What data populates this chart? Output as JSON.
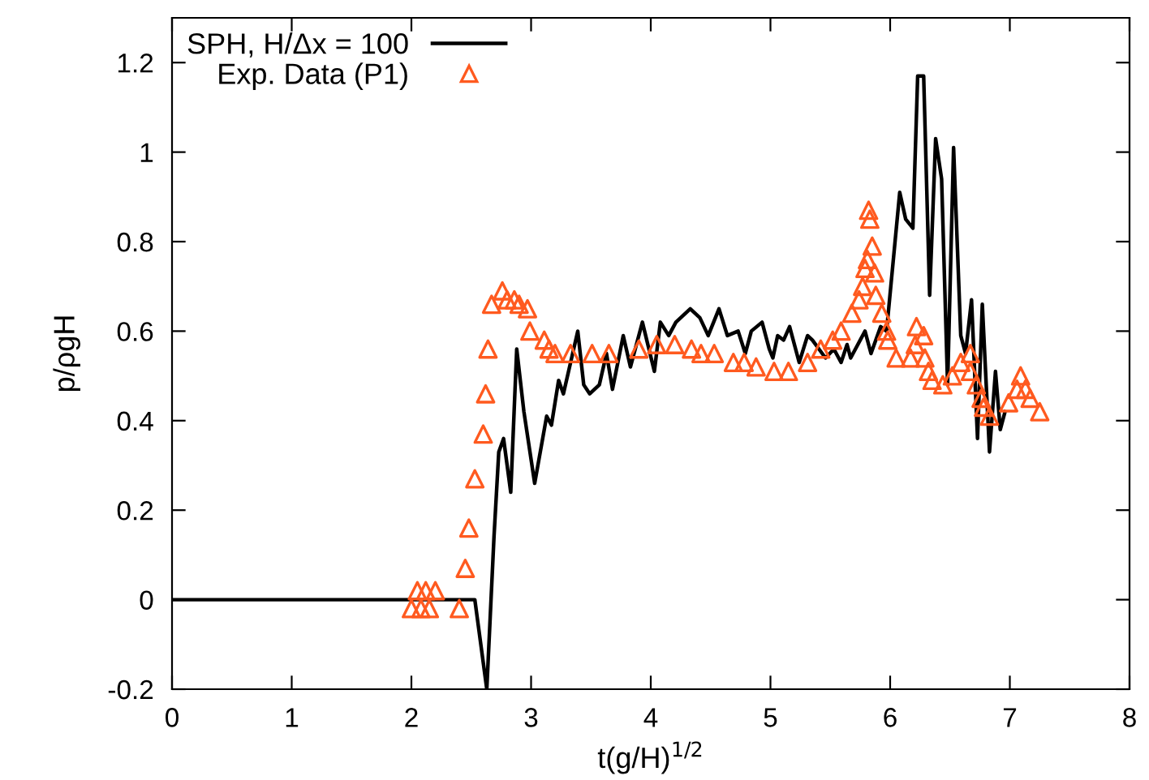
{
  "chart_data": {
    "type": "line",
    "xlabel": "t(g/H)$^{1/2}$",
    "ylabel": "p/ρgH",
    "xlim": [
      0,
      8
    ],
    "xticks": [
      0,
      1,
      2,
      3,
      4,
      5,
      6,
      7,
      8
    ],
    "ylim": [
      -0.2,
      1.3
    ],
    "yticks": [
      -0.2,
      0,
      0.2,
      0.4,
      0.6,
      0.8,
      1,
      1.2
    ],
    "grid": false,
    "legend": "top left",
    "series": [
      {
        "name": "SPH, H/Δx = 100",
        "color": "#000000",
        "marker": "none",
        "line_style": "solid",
        "x": [
          0,
          2.53,
          2.63,
          2.69,
          2.73,
          2.77,
          2.83,
          2.88,
          2.94,
          3.03,
          3.13,
          3.17,
          3.23,
          3.27,
          3.39,
          3.44,
          3.49,
          3.57,
          3.63,
          3.68,
          3.77,
          3.83,
          3.93,
          4.03,
          4.08,
          4.15,
          4.21,
          4.33,
          4.41,
          4.48,
          4.57,
          4.64,
          4.73,
          4.79,
          4.84,
          4.93,
          4.99,
          5.02,
          5.06,
          5.11,
          5.16,
          5.24,
          5.31,
          5.35,
          5.46,
          5.53,
          5.59,
          5.64,
          5.67,
          5.79,
          5.84,
          5.92,
          5.97,
          6.08,
          6.13,
          6.19,
          6.23,
          6.28,
          6.33,
          6.38,
          6.43,
          6.48,
          6.53,
          6.59,
          6.63,
          6.68,
          6.73,
          6.77,
          6.83,
          6.88,
          6.92,
          6.96
        ],
        "values": [
          0,
          0,
          -0.2,
          0.14,
          0.33,
          0.36,
          0.24,
          0.56,
          0.42,
          0.26,
          0.41,
          0.39,
          0.49,
          0.46,
          0.6,
          0.48,
          0.46,
          0.48,
          0.55,
          0.47,
          0.59,
          0.52,
          0.62,
          0.51,
          0.62,
          0.59,
          0.62,
          0.65,
          0.63,
          0.59,
          0.65,
          0.59,
          0.6,
          0.55,
          0.6,
          0.62,
          0.56,
          0.54,
          0.59,
          0.58,
          0.61,
          0.53,
          0.59,
          0.58,
          0.54,
          0.56,
          0.53,
          0.57,
          0.54,
          0.6,
          0.55,
          0.61,
          0.6,
          0.91,
          0.85,
          0.83,
          1.17,
          1.17,
          0.68,
          1.03,
          0.94,
          0.48,
          1.01,
          0.59,
          0.55,
          0.67,
          0.36,
          0.66,
          0.33,
          0.51,
          0.38,
          0.42
        ]
      },
      {
        "name": "Exp. Data (P1)",
        "type": "scatter",
        "color": "#ff5a1f",
        "marker": "triangle",
        "x": [
          2.0,
          2.05,
          2.08,
          2.12,
          2.15,
          2.2,
          2.4,
          2.45,
          2.48,
          2.53,
          2.6,
          2.62,
          2.64,
          2.67,
          2.76,
          2.8,
          2.86,
          2.9,
          2.97,
          2.99,
          3.11,
          3.15,
          3.2,
          3.33,
          3.51,
          3.65,
          3.9,
          4.05,
          4.2,
          4.34,
          4.42,
          4.53,
          4.69,
          4.78,
          4.88,
          5.03,
          5.15,
          5.31,
          5.42,
          5.52,
          5.59,
          5.68,
          5.74,
          5.77,
          5.79,
          5.81,
          5.85,
          5.83,
          5.82,
          5.87,
          5.88,
          5.93,
          5.97,
          5.98,
          6.05,
          6.17,
          6.21,
          6.22,
          6.28,
          6.29,
          6.32,
          6.35,
          6.44,
          6.52,
          6.59,
          6.67,
          6.67,
          6.72,
          6.76,
          6.78,
          6.83,
          6.99,
          7.06,
          7.09,
          7.13,
          7.17,
          7.25
        ],
        "values": [
          -0.02,
          0.02,
          -0.02,
          0.02,
          -0.02,
          0.02,
          -0.02,
          0.07,
          0.16,
          0.27,
          0.37,
          0.46,
          0.56,
          0.66,
          0.69,
          0.67,
          0.67,
          0.66,
          0.65,
          0.6,
          0.58,
          0.56,
          0.55,
          0.55,
          0.55,
          0.55,
          0.56,
          0.57,
          0.57,
          0.56,
          0.55,
          0.55,
          0.53,
          0.53,
          0.52,
          0.51,
          0.51,
          0.53,
          0.56,
          0.58,
          0.6,
          0.64,
          0.67,
          0.7,
          0.74,
          0.76,
          0.79,
          0.85,
          0.87,
          0.73,
          0.68,
          0.64,
          0.6,
          0.58,
          0.54,
          0.54,
          0.57,
          0.61,
          0.59,
          0.54,
          0.51,
          0.49,
          0.48,
          0.5,
          0.53,
          0.55,
          0.51,
          0.48,
          0.45,
          0.43,
          0.41,
          0.44,
          0.47,
          0.5,
          0.47,
          0.45,
          0.42
        ]
      }
    ]
  }
}
